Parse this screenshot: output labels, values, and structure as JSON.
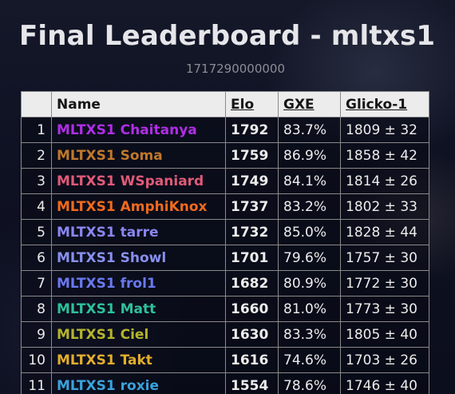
{
  "page": {
    "title": "Final Leaderboard - mltxs1",
    "subtitle": "1717290000000"
  },
  "table": {
    "headers": {
      "rank": "",
      "name": "Name",
      "elo": "Elo",
      "gxe": "GXE",
      "glicko": "Glicko-1"
    },
    "rows": [
      {
        "rank": "1",
        "name": "MLTXS1 Chaitanya",
        "elo": "1792",
        "gxe": "83.7%",
        "glicko": "1809 ± 32",
        "color": "#b02ee6"
      },
      {
        "rank": "2",
        "name": "MLTXS1 Soma",
        "elo": "1759",
        "gxe": "86.9%",
        "glicko": "1858 ± 42",
        "color": "#c0782c"
      },
      {
        "rank": "3",
        "name": "MLTXS1 WSpaniard",
        "elo": "1749",
        "gxe": "84.1%",
        "glicko": "1814 ± 26",
        "color": "#e05a78"
      },
      {
        "rank": "4",
        "name": "MLTXS1 AmphiKnox",
        "elo": "1737",
        "gxe": "83.2%",
        "glicko": "1802 ± 33",
        "color": "#f06a1e"
      },
      {
        "rank": "5",
        "name": "MLTXS1 tarre",
        "elo": "1732",
        "gxe": "85.0%",
        "glicko": "1828 ± 44",
        "color": "#8a86f0"
      },
      {
        "rank": "6",
        "name": "MLTXS1 Showl",
        "elo": "1701",
        "gxe": "79.6%",
        "glicko": "1757 ± 30",
        "color": "#8890ee"
      },
      {
        "rank": "7",
        "name": "MLTXS1 frol1",
        "elo": "1682",
        "gxe": "80.9%",
        "glicko": "1772 ± 30",
        "color": "#6a78f0"
      },
      {
        "rank": "8",
        "name": "MLTXS1 Matt",
        "elo": "1660",
        "gxe": "81.0%",
        "glicko": "1773 ± 30",
        "color": "#2ec09a"
      },
      {
        "rank": "9",
        "name": "MLTXS1 Ciel",
        "elo": "1630",
        "gxe": "83.3%",
        "glicko": "1805 ± 40",
        "color": "#b4b42c"
      },
      {
        "rank": "10",
        "name": "MLTXS1 Takt",
        "elo": "1616",
        "gxe": "74.6%",
        "glicko": "1703 ± 26",
        "color": "#e2ae2c"
      },
      {
        "rank": "11",
        "name": "MLTXS1 roxie",
        "elo": "1554",
        "gxe": "78.6%",
        "glicko": "1746 ± 40",
        "color": "#3aa2dc"
      }
    ]
  }
}
